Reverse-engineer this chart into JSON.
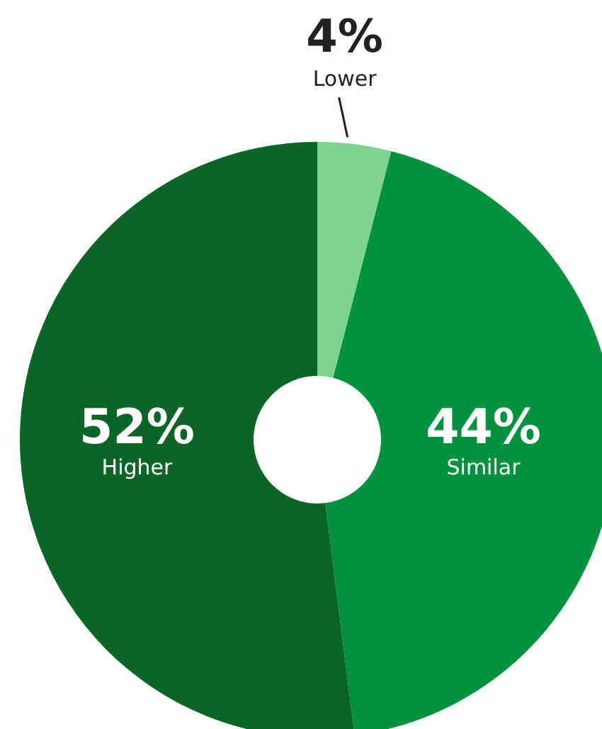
{
  "chart_data": {
    "type": "donut",
    "categories": [
      "Lower",
      "Similar",
      "Higher"
    ],
    "values": [
      4,
      44,
      52
    ],
    "value_labels": [
      "4%",
      "44%",
      "52%"
    ],
    "colors": [
      "#7dd38f",
      "#00923f",
      "#0b6428"
    ],
    "legend": false
  }
}
